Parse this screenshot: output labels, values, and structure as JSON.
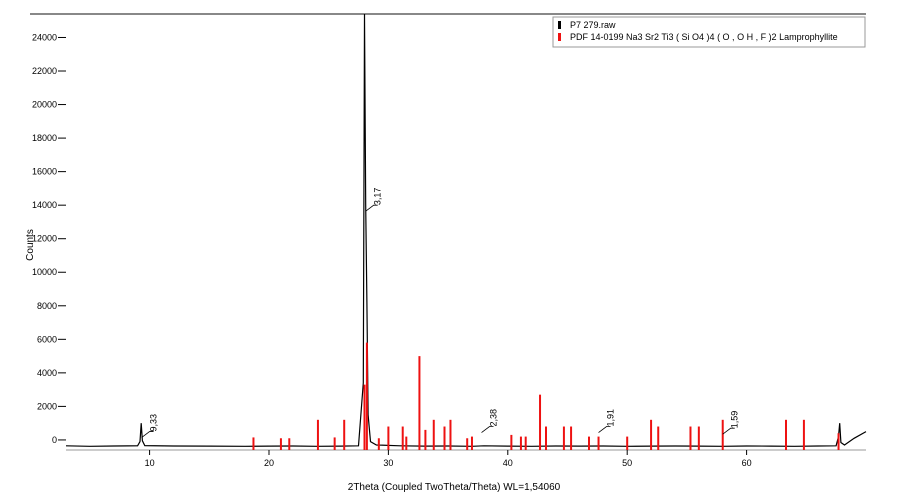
{
  "chart_data": {
    "type": "line",
    "x_label": "2Theta (Coupled TwoTheta/Theta) WL=1,54060",
    "y_label": "Counts",
    "xlim": [
      3,
      70
    ],
    "ylim": [
      -600,
      25400
    ],
    "xticks": [
      10,
      20,
      30,
      40,
      50,
      60
    ],
    "yticks": [
      0,
      2000,
      4000,
      6000,
      8000,
      10000,
      12000,
      14000,
      16000,
      18000,
      20000,
      22000,
      24000
    ],
    "legend": "top-right",
    "series": [
      {
        "name": "P7 279.raw",
        "color": "#000000",
        "mark": "line",
        "x": [
          3,
          5,
          7,
          9,
          9.2,
          9.3,
          9.4,
          9.6,
          12,
          15,
          18,
          20,
          22,
          24,
          26,
          27.5,
          27.9,
          28.0,
          28.1,
          28.2,
          28.3,
          28.5,
          29,
          31,
          33,
          35,
          37,
          38,
          40,
          42,
          44,
          46,
          48,
          50,
          52,
          54,
          56,
          58,
          60,
          62,
          64,
          66,
          67.5,
          67.7,
          67.8,
          67.9,
          68.2,
          69,
          70
        ],
        "values": [
          -350,
          -380,
          -360,
          -350,
          -100,
          1000,
          -50,
          -340,
          -360,
          -370,
          -380,
          -370,
          -360,
          -380,
          -370,
          -350,
          3400,
          25400,
          14000,
          8200,
          1500,
          -100,
          -300,
          -350,
          -370,
          -360,
          -380,
          -350,
          -370,
          -380,
          -360,
          -370,
          -360,
          -380,
          -370,
          -360,
          -370,
          -380,
          -360,
          -370,
          -380,
          -360,
          -350,
          200,
          1000,
          -150,
          -300,
          100,
          500
        ]
      },
      {
        "name": "PDF 14-0199 Na3 Sr2 Ti3 ( Si O4 )4 ( O , O H , F )2 Lamprophyllite",
        "color": "#ee1111",
        "mark": "stick",
        "x": [
          18.7,
          21.0,
          21.7,
          24.1,
          25.5,
          26.3,
          28.0,
          28.2,
          29.2,
          30.0,
          31.2,
          31.5,
          32.6,
          33.1,
          33.8,
          34.7,
          35.2,
          36.6,
          37.0,
          40.3,
          41.1,
          41.5,
          42.7,
          43.2,
          44.7,
          45.3,
          46.8,
          47.6,
          50.0,
          52.0,
          52.6,
          55.3,
          56.0,
          58.0,
          63.3,
          64.8,
          67.7
        ],
        "values": [
          150,
          100,
          100,
          1200,
          150,
          1200,
          3300,
          5800,
          100,
          800,
          800,
          200,
          5000,
          600,
          1200,
          800,
          1200,
          100,
          200,
          300,
          200,
          200,
          2700,
          800,
          800,
          800,
          200,
          200,
          200,
          1200,
          800,
          800,
          800,
          1200,
          1200,
          1200,
          400
        ]
      }
    ],
    "annotations": [
      {
        "text": "9,33",
        "x": 9.33,
        "y": 500
      },
      {
        "text": "3,17",
        "x": 28.1,
        "y": 14000
      },
      {
        "text": "2,38",
        "x": 37.8,
        "y": 800
      },
      {
        "text": "1,91",
        "x": 47.6,
        "y": 800
      },
      {
        "text": "1,59",
        "x": 58.0,
        "y": 700
      }
    ]
  }
}
